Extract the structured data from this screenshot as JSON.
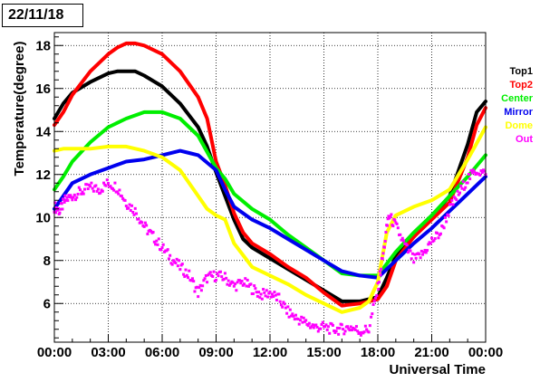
{
  "date_label": "22/11/18",
  "chart_data": {
    "type": "line",
    "title": "",
    "xlabel": "Universal Time",
    "ylabel": "Temperature(degree)",
    "x_unit": "hours",
    "xlim": [
      0,
      24
    ],
    "ylim": [
      4.2,
      18.6
    ],
    "x_ticks": [
      {
        "value": 0,
        "label": "00:00"
      },
      {
        "value": 3,
        "label": "03:00"
      },
      {
        "value": 6,
        "label": "06:00"
      },
      {
        "value": 9,
        "label": "09:00"
      },
      {
        "value": 12,
        "label": "12:00"
      },
      {
        "value": 15,
        "label": "15:00"
      },
      {
        "value": 18,
        "label": "18:00"
      },
      {
        "value": 21,
        "label": "21:00"
      },
      {
        "value": 24,
        "label": "00:00"
      }
    ],
    "y_ticks": [
      6,
      8,
      10,
      12,
      14,
      16,
      18
    ],
    "grid": true,
    "legend_position": "right",
    "series": [
      {
        "name": "Top1",
        "color": "#000000",
        "marker": "line",
        "x": [
          0,
          0.5,
          1,
          2,
          3,
          3.5,
          4,
          4.5,
          5,
          6,
          7,
          8,
          8.5,
          9,
          9.5,
          10,
          10.5,
          11,
          12,
          13,
          14,
          15,
          16,
          17,
          18,
          18.5,
          19,
          20,
          21,
          22,
          23,
          23.5,
          24
        ],
        "y": [
          14.6,
          15.3,
          15.8,
          16.3,
          16.7,
          16.8,
          16.8,
          16.8,
          16.6,
          16.1,
          15.3,
          14.2,
          13.3,
          12.1,
          11.0,
          9.9,
          9.0,
          8.6,
          8.1,
          7.6,
          7.1,
          6.6,
          6.1,
          6.1,
          6.3,
          7.2,
          8.2,
          9.1,
          10.0,
          11.0,
          13.4,
          14.9,
          15.4
        ]
      },
      {
        "name": "Top2",
        "color": "#ff0000",
        "marker": "line",
        "x": [
          0,
          0.5,
          1,
          2,
          3,
          3.5,
          4,
          4.5,
          5,
          6,
          7,
          8,
          8.5,
          9,
          9.5,
          10,
          10.5,
          11,
          12,
          13,
          14,
          15,
          16,
          17,
          18,
          18.5,
          19,
          20,
          21,
          22,
          23,
          23.5,
          24
        ],
        "y": [
          14.3,
          14.9,
          15.7,
          16.8,
          17.6,
          17.9,
          18.1,
          18.1,
          18.0,
          17.6,
          16.8,
          15.6,
          14.6,
          12.6,
          11.5,
          10.2,
          9.3,
          8.8,
          8.3,
          7.7,
          7.2,
          6.5,
          5.9,
          6.0,
          6.2,
          6.8,
          8.0,
          9.1,
          9.9,
          10.7,
          12.8,
          14.3,
          15.1
        ]
      },
      {
        "name": "Center",
        "color": "#00ee00",
        "marker": "line",
        "x": [
          0,
          0.5,
          1,
          2,
          3,
          4,
          5,
          5.5,
          6,
          7,
          8,
          9,
          9.5,
          10,
          11,
          12,
          13,
          14,
          15,
          16,
          17,
          18,
          19,
          20,
          21,
          22,
          23,
          24
        ],
        "y": [
          11.3,
          11.9,
          12.6,
          13.5,
          14.2,
          14.6,
          14.9,
          14.9,
          14.9,
          14.6,
          13.8,
          12.3,
          11.8,
          11.1,
          10.4,
          9.9,
          9.2,
          8.6,
          8.0,
          7.4,
          7.3,
          7.3,
          8.4,
          9.3,
          10.1,
          11.0,
          11.9,
          12.9
        ]
      },
      {
        "name": "Mirror",
        "color": "#0000ee",
        "marker": "line",
        "x": [
          0,
          0.5,
          1,
          2,
          3,
          4,
          5,
          6,
          7,
          7.5,
          8,
          9,
          9.5,
          10,
          11,
          12,
          13,
          14,
          15,
          16,
          17,
          18,
          19,
          20,
          21,
          22,
          23,
          24
        ],
        "y": [
          10.4,
          11.0,
          11.6,
          12.0,
          12.3,
          12.6,
          12.7,
          12.9,
          13.1,
          13.0,
          12.9,
          12.2,
          11.3,
          10.5,
          9.9,
          9.5,
          9.0,
          8.5,
          8.0,
          7.5,
          7.3,
          7.2,
          8.0,
          8.8,
          9.5,
          10.3,
          11.1,
          11.9
        ]
      },
      {
        "name": "Dome",
        "color": "#ffff00",
        "marker": "line",
        "x": [
          0,
          0.5,
          1,
          2,
          3,
          4,
          5,
          6,
          7,
          8,
          8.5,
          9,
          9.5,
          10,
          11,
          12,
          13,
          14,
          15,
          16,
          17,
          17.5,
          18,
          18.5,
          19,
          20,
          21,
          22,
          23,
          24
        ],
        "y": [
          13.1,
          13.2,
          13.2,
          13.2,
          13.3,
          13.3,
          13.1,
          12.8,
          12.2,
          11.0,
          10.4,
          10.1,
          9.9,
          8.8,
          7.7,
          7.3,
          6.9,
          6.4,
          6.0,
          5.6,
          5.8,
          6.1,
          7.0,
          9.3,
          10.1,
          10.5,
          10.8,
          11.3,
          12.7,
          14.2
        ]
      },
      {
        "name": "Out",
        "color": "#ff00ff",
        "marker": "points",
        "x": [
          0,
          0.3,
          0.6,
          1,
          1.5,
          2,
          2.5,
          3,
          3.5,
          4,
          4.5,
          5,
          5.5,
          6,
          6.5,
          7,
          7.5,
          8,
          8.5,
          9,
          9.5,
          10,
          10.5,
          11,
          11.5,
          12,
          12.5,
          13,
          13.5,
          14,
          14.5,
          15,
          15.5,
          16,
          16.5,
          17,
          17.5,
          18,
          18.3,
          18.6,
          19,
          19.5,
          20,
          20.5,
          21,
          21.5,
          22,
          22.5,
          23,
          23.5,
          24
        ],
        "y": [
          10.5,
          10.3,
          10.8,
          11.0,
          11.2,
          11.4,
          11.3,
          11.6,
          11.4,
          10.7,
          10.3,
          9.6,
          9.1,
          8.6,
          8.1,
          7.7,
          7.3,
          6.5,
          7.2,
          7.3,
          7.2,
          6.8,
          7.0,
          6.7,
          6.4,
          6.5,
          6.2,
          5.6,
          5.3,
          5.1,
          4.9,
          4.9,
          4.8,
          4.8,
          4.9,
          4.7,
          4.8,
          6.7,
          8.3,
          10.1,
          9.6,
          8.7,
          8.0,
          8.3,
          8.9,
          9.3,
          10.4,
          11.1,
          11.8,
          12.2,
          12.0
        ]
      }
    ]
  }
}
